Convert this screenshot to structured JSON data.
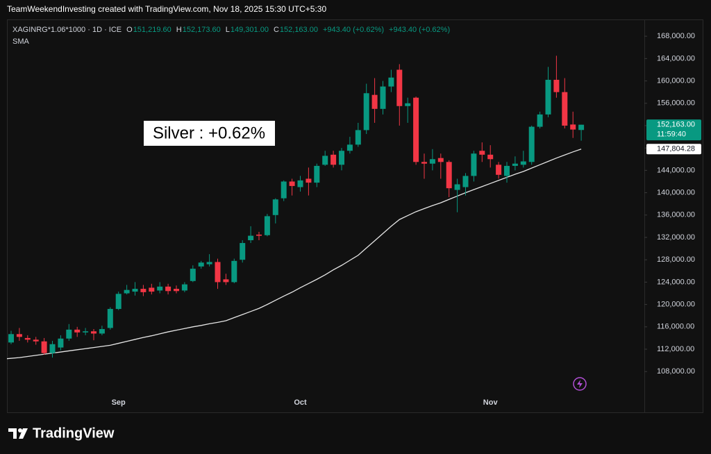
{
  "header": "TeamWeekendInvesting created with TradingView.com, Nov 18, 2025 15:30 UTC+5:30",
  "chart_data": {
    "type": "candlestick",
    "symbol": "XAGINRG*1.06*1000 · 1D · ICE",
    "ohlc_legend": [
      {
        "key": "O",
        "text": "151,219.60"
      },
      {
        "key": "H",
        "text": "152,173.60"
      },
      {
        "key": "L",
        "text": "149,301.00"
      },
      {
        "key": "C",
        "text": "152,163.00"
      }
    ],
    "change_texts": [
      "+943.40 (+0.62%)",
      "+943.40 (+0.62%)"
    ],
    "annotation": "Silver : +0.62%",
    "up_color": "#089981",
    "down_color": "#f23645",
    "categories": [
      null,
      null,
      null,
      null,
      null,
      null,
      null,
      null,
      null,
      null,
      null,
      null,
      null,
      "Sep",
      null,
      null,
      null,
      null,
      null,
      null,
      null,
      null,
      null,
      null,
      null,
      null,
      null,
      null,
      null,
      null,
      null,
      null,
      null,
      null,
      null,
      "Oct",
      null,
      null,
      null,
      null,
      null,
      null,
      null,
      null,
      null,
      null,
      null,
      null,
      null,
      null,
      null,
      null,
      null,
      null,
      null,
      null,
      null,
      null,
      "Nov",
      null,
      null,
      null,
      null,
      null,
      null,
      null,
      null,
      null,
      null,
      null
    ],
    "open": [
      113200,
      114700,
      114000,
      113700,
      113400,
      111300,
      112300,
      113900,
      115500,
      115000,
      115200,
      114800,
      115800,
      119200,
      122000,
      122300,
      122800,
      123000,
      122500,
      123200,
      122800,
      122500,
      124200,
      126800,
      127200,
      127600,
      124500,
      124000,
      128000,
      131500,
      132500,
      132400,
      136000,
      139000,
      142000,
      141000,
      142500,
      141800,
      145000,
      146800,
      145000,
      147500,
      148600,
      151200,
      157500,
      155000,
      159000,
      162000,
      155500,
      157000,
      145500,
      145200,
      146200,
      145500,
      140500,
      141000,
      143000,
      147500,
      146800,
      145000,
      143000,
      144800,
      145000,
      145500,
      151800,
      154000,
      160200,
      158000,
      152200,
      151219.6
    ],
    "high": [
      115300,
      115800,
      114500,
      114200,
      114000,
      113500,
      114500,
      116500,
      116000,
      115800,
      115600,
      116200,
      119500,
      122300,
      123500,
      124000,
      123500,
      123700,
      124000,
      123700,
      123400,
      124000,
      127000,
      127800,
      129000,
      128200,
      125500,
      128200,
      131500,
      134000,
      133000,
      136200,
      139000,
      142200,
      142500,
      143000,
      144500,
      145200,
      147500,
      147500,
      148000,
      150000,
      152500,
      159500,
      160500,
      160000,
      162000,
      163000,
      157000,
      157200,
      147000,
      147800,
      147000,
      145800,
      142500,
      143500,
      147500,
      149000,
      148500,
      145500,
      145500,
      146500,
      147500,
      152000,
      154500,
      162500,
      164500,
      160500,
      154500,
      152173.6
    ],
    "low": [
      112900,
      113500,
      113200,
      112800,
      111000,
      110500,
      111800,
      113500,
      114200,
      114500,
      113600,
      114500,
      115500,
      119000,
      121800,
      121600,
      121500,
      121800,
      122000,
      121800,
      122000,
      122200,
      124000,
      126400,
      126800,
      122800,
      123500,
      123800,
      127500,
      131000,
      131500,
      132200,
      134500,
      138500,
      139500,
      140200,
      139500,
      141000,
      144800,
      144500,
      144000,
      147000,
      148200,
      150500,
      152500,
      154000,
      158000,
      152000,
      152500,
      145000,
      142500,
      144000,
      142500,
      139200,
      136500,
      139500,
      142000,
      145500,
      144500,
      142500,
      141800,
      144000,
      144500,
      145000,
      151500,
      153500,
      157000,
      151500,
      149800,
      149301
    ],
    "close": [
      114700,
      114200,
      113700,
      113400,
      111300,
      112900,
      113900,
      115500,
      115000,
      115200,
      114800,
      115600,
      119200,
      121900,
      122600,
      122800,
      122200,
      122300,
      123200,
      122400,
      122400,
      123600,
      126400,
      127500,
      127600,
      124000,
      124000,
      127800,
      131000,
      132300,
      132300,
      135800,
      138800,
      142000,
      141200,
      142200,
      141800,
      144800,
      146600,
      145000,
      147500,
      148600,
      151200,
      157800,
      155000,
      159000,
      160600,
      155500,
      156000,
      145500,
      145200,
      146000,
      145500,
      140800,
      141500,
      143000,
      147000,
      146800,
      146000,
      143200,
      144800,
      145200,
      145600,
      151800,
      154000,
      160200,
      158000,
      152000,
      151300,
      152163
    ],
    "sma": {
      "name": "SMA",
      "color": "#e6e6e6",
      "values": [
        110300,
        110500,
        110700,
        110900,
        111100,
        111300,
        111500,
        111700,
        111900,
        112100,
        112300,
        112500,
        112700,
        113050,
        113400,
        113750,
        114100,
        114400,
        114750,
        115100,
        115400,
        115700,
        116000,
        116250,
        116550,
        116800,
        117100,
        117650,
        118200,
        118750,
        119300,
        120000,
        120750,
        121500,
        122200,
        123000,
        123750,
        124500,
        125300,
        126200,
        127000,
        127900,
        128800,
        130100,
        131400,
        132700,
        134000,
        135200,
        135900,
        136600,
        137150,
        137700,
        138200,
        138800,
        139400,
        140000,
        140550,
        141100,
        141650,
        142200,
        142750,
        143300,
        143800,
        144400,
        145000,
        145600,
        146200,
        146750,
        147300,
        147804.28
      ]
    },
    "price_tags": [
      {
        "value": 152163,
        "label": "152,163.00",
        "countdown": "11:59:40",
        "color": "#089981",
        "text_color": "#ffffff"
      },
      {
        "value": 147804.28,
        "label": "147,804.28",
        "color": "#ffffff",
        "text_color": "#131722"
      }
    ],
    "ylim": [
      100700,
      171000
    ],
    "yticks": [
      {
        "value": 108000,
        "label": "108,000.00"
      },
      {
        "value": 112000,
        "label": "112,000.00"
      },
      {
        "value": 116000,
        "label": "116,000.00"
      },
      {
        "value": 120000,
        "label": "120,000.00"
      },
      {
        "value": 124000,
        "label": "124,000.00"
      },
      {
        "value": 128000,
        "label": "128,000.00"
      },
      {
        "value": 132000,
        "label": "132,000.00"
      },
      {
        "value": 136000,
        "label": "136,000.00"
      },
      {
        "value": 140000,
        "label": "140,000.00"
      },
      {
        "value": 144000,
        "label": "144,000.00"
      },
      {
        "value": 148000,
        "label": "148,000.00"
      },
      {
        "value": 152000,
        "label": "152,000.00"
      },
      {
        "value": 156000,
        "label": "156,000.00"
      },
      {
        "value": 160000,
        "label": "160,000.00"
      },
      {
        "value": 164000,
        "label": "164,000.00"
      },
      {
        "value": 168000,
        "label": "168,000.00"
      }
    ],
    "grid": false
  },
  "footer": {
    "brand": "TradingView"
  }
}
